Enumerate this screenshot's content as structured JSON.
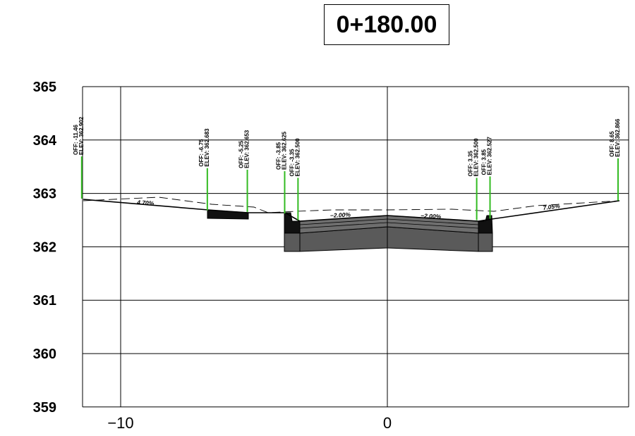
{
  "station": "0+180.00",
  "y_axis": {
    "ticks": [
      {
        "value": 365,
        "label": "365"
      },
      {
        "value": 364,
        "label": "364"
      },
      {
        "value": 363,
        "label": "363"
      },
      {
        "value": 362,
        "label": "362"
      },
      {
        "value": 361,
        "label": "361"
      },
      {
        "value": 360,
        "label": "360"
      },
      {
        "value": 359,
        "label": "359"
      }
    ]
  },
  "x_axis": {
    "ticks": [
      {
        "value": -10,
        "label": "−10"
      },
      {
        "value": 0,
        "label": "0"
      }
    ]
  },
  "points": [
    {
      "offset": -11.46,
      "off_label": "OFF:",
      "off_value": "-11.46",
      "elev_label": "ELEV:",
      "elev_value": "362.902"
    },
    {
      "offset": -6.75,
      "off_label": "OFF:",
      "off_value": "-6.75",
      "elev_label": "ELEV:",
      "elev_value": "362.683"
    },
    {
      "offset": -5.25,
      "off_label": "OFF:",
      "off_value": "-5.25",
      "elev_label": "ELEV:",
      "elev_value": "362.653"
    },
    {
      "offset": -3.85,
      "off_label": "OFF:",
      "off_value": "-3.85",
      "elev_label": "ELEV:",
      "elev_value": "362.625"
    },
    {
      "offset": -3.35,
      "off_label": "OFF:",
      "off_value": "-3.35",
      "elev_label": "ELEV:",
      "elev_value": "362.500"
    },
    {
      "offset": 3.35,
      "off_label": "OFF:",
      "off_value": "3.35",
      "elev_label": "ELEV:",
      "elev_value": "362.500"
    },
    {
      "offset": 3.85,
      "off_label": "OFF:",
      "off_value": "3.85",
      "elev_label": "ELEV:",
      "elev_value": "362.527"
    },
    {
      "offset": 8.65,
      "off_label": "OFF:",
      "off_value": "8.65",
      "elev_label": "ELEV:",
      "elev_value": "362.866"
    }
  ],
  "slopes": [
    {
      "label": "4.70%"
    },
    {
      "label": "−2.00%"
    },
    {
      "label": "−2.00%"
    },
    {
      "label": "7.05%"
    }
  ],
  "colors": {
    "marker": "#33bb22",
    "pavement": "#5a5a5a",
    "pavement_dark": "#333333",
    "line": "#000000"
  }
}
